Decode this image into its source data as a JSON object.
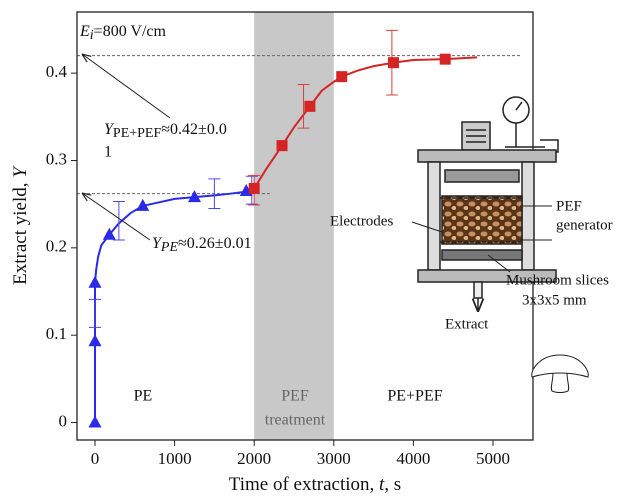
{
  "chart_data": {
    "type": "line",
    "x_label": {
      "before": "Time of extraction, ",
      "var": "t,",
      "after": " s"
    },
    "y_label": {
      "before": "Extract yield, ",
      "var": "Y"
    },
    "xlim": [
      -226,
      5503
    ],
    "ylim": [
      -0.02,
      0.47
    ],
    "xticks": [
      0,
      1000,
      2000,
      3000,
      4000,
      5000
    ],
    "yticks": [
      0,
      0.1,
      0.2,
      0.3,
      0.4
    ],
    "shaded_region": {
      "x": [
        2000,
        3000
      ],
      "color": "#c8c8c8"
    },
    "reference_lines": [
      {
        "y": 0.42
      },
      {
        "y": 0.262
      }
    ],
    "curves": [
      {
        "color": "#2a2ae8",
        "x": [
          0,
          0,
          0,
          15,
          40,
          80,
          180,
          300,
          450,
          600,
          800,
          1000,
          1250,
          1500,
          1700,
          1950
        ],
        "values": [
          0,
          0.093,
          0.16,
          0.175,
          0.19,
          0.203,
          0.215,
          0.228,
          0.24,
          0.248,
          0.252,
          0.256,
          0.258,
          0.26,
          0.262,
          0.265
        ]
      },
      {
        "color": "#d42424",
        "x": [
          2000,
          2150,
          2350,
          2500,
          2700,
          2850,
          3000,
          3100,
          3300,
          3500,
          3750,
          4000,
          4400,
          4800
        ],
        "values": [
          0.268,
          0.29,
          0.317,
          0.338,
          0.362,
          0.38,
          0.39,
          0.396,
          0.403,
          0.408,
          0.412,
          0.415,
          0.416,
          0.418
        ]
      }
    ],
    "markers": [
      {
        "color": "#2a2ae8",
        "shape": "triangle",
        "x": [
          0,
          0,
          0,
          180,
          600,
          1250,
          1900
        ],
        "values": [
          0,
          0.093,
          0.16,
          0.215,
          0.248,
          0.258,
          0.265
        ]
      },
      {
        "color": "#d42424",
        "shape": "square",
        "x": [
          2000,
          2350,
          2700,
          3100,
          3750,
          4400
        ],
        "values": [
          0.268,
          0.317,
          0.362,
          0.396,
          0.412,
          0.416
        ]
      }
    ],
    "error_bars": [
      {
        "color": "#4a4ae8",
        "x": [
          0,
          300,
          1500,
          1970
        ],
        "values": [
          0.125,
          0.231,
          0.262,
          0.266
        ],
        "errors": [
          0.016,
          0.022,
          0.017,
          0.016
        ]
      },
      {
        "color": "#d84040",
        "x": [
          2000,
          2620,
          3730
        ],
        "values": [
          0.266,
          0.362,
          0.412
        ],
        "errors": [
          0.017,
          0.025,
          0.037
        ]
      }
    ],
    "annotations": {
      "field": {
        "sym": "E",
        "sub": "i",
        "rest": "=800 V/cm"
      },
      "y_pef": {
        "sym": "Y",
        "sub": "PE+PEF",
        "rest": "≈0.42±0.0",
        "wrap": "1"
      },
      "y_pe": {
        "sym": "Y",
        "sub": "PE",
        "rest": "≈0.26±0.01"
      },
      "regions": [
        "PE",
        "PEF",
        "treatment",
        "PE+PEF"
      ]
    },
    "inset": {
      "electrodes": "Electrodes",
      "generator": [
        "PEF",
        "generator"
      ],
      "slices": [
        "Mushroom slices",
        "3x3x5 mm"
      ],
      "extract": "Extract"
    }
  }
}
